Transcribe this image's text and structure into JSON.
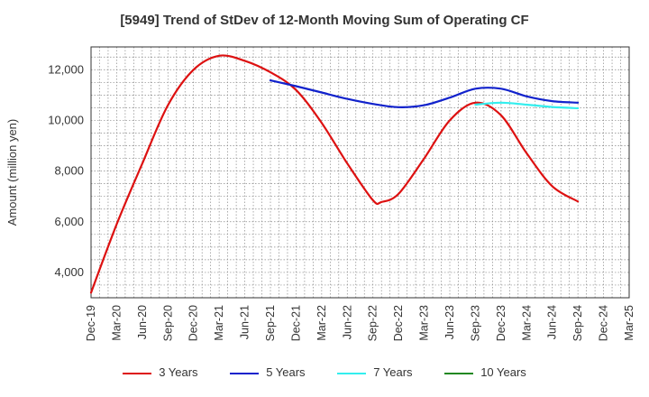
{
  "chart_data": {
    "type": "line",
    "title": "[5949]  Trend of StDev of 12-Month Moving Sum of Operating CF",
    "xlabel": "",
    "ylabel": "Amount (million yen)",
    "ylim": [
      3000,
      12900
    ],
    "yticks": [
      4000,
      6000,
      8000,
      10000,
      12000
    ],
    "ytick_labels": [
      "4,000",
      "6,000",
      "8,000",
      "10,000",
      "12,000"
    ],
    "xticks": [
      "Dec-19",
      "Mar-20",
      "Jun-20",
      "Sep-20",
      "Dec-20",
      "Mar-21",
      "Jun-21",
      "Sep-21",
      "Dec-21",
      "Mar-22",
      "Jun-22",
      "Sep-22",
      "Dec-22",
      "Mar-23",
      "Jun-23",
      "Sep-23",
      "Dec-23",
      "Mar-24",
      "Jun-24",
      "Sep-24",
      "Dec-24",
      "Mar-25"
    ],
    "grid": true,
    "legend_position": "bottom",
    "series": [
      {
        "name": "3 Years",
        "color": "#dd1111",
        "points": [
          [
            "Dec-19",
            3200
          ],
          [
            "Mar-20",
            5900
          ],
          [
            "Jun-20",
            8300
          ],
          [
            "Sep-20",
            10600
          ],
          [
            "Dec-20",
            12000
          ],
          [
            "Mar-21",
            12550
          ],
          [
            "Jun-21",
            12350
          ],
          [
            "Sep-21",
            11900
          ],
          [
            "Dec-21",
            11200
          ],
          [
            "Mar-22",
            9900
          ],
          [
            "Jun-22",
            8300
          ],
          [
            "Sep-22",
            6850
          ],
          [
            "Oct-22",
            6780
          ],
          [
            "Dec-22",
            7100
          ],
          [
            "Mar-23",
            8500
          ],
          [
            "Jun-23",
            10000
          ],
          [
            "Sep-23",
            10700
          ],
          [
            "Dec-23",
            10200
          ],
          [
            "Mar-24",
            8700
          ],
          [
            "Jun-24",
            7400
          ],
          [
            "Sep-24",
            6800
          ]
        ]
      },
      {
        "name": "5 Years",
        "color": "#1122cc",
        "points": [
          [
            "Sep-21",
            11580
          ],
          [
            "Dec-21",
            11350
          ],
          [
            "Mar-22",
            11100
          ],
          [
            "Jun-22",
            10850
          ],
          [
            "Sep-22",
            10650
          ],
          [
            "Dec-22",
            10520
          ],
          [
            "Mar-23",
            10600
          ],
          [
            "Jun-23",
            10900
          ],
          [
            "Sep-23",
            11250
          ],
          [
            "Dec-23",
            11250
          ],
          [
            "Mar-24",
            10950
          ],
          [
            "Jun-24",
            10760
          ],
          [
            "Sep-24",
            10700
          ]
        ]
      },
      {
        "name": "7 Years",
        "color": "#33eeee",
        "points": [
          [
            "Sep-23",
            10620
          ],
          [
            "Dec-23",
            10700
          ],
          [
            "Mar-24",
            10620
          ],
          [
            "Jun-24",
            10530
          ],
          [
            "Sep-24",
            10480
          ]
        ]
      },
      {
        "name": "10 Years",
        "color": "#228822",
        "points": []
      }
    ]
  }
}
